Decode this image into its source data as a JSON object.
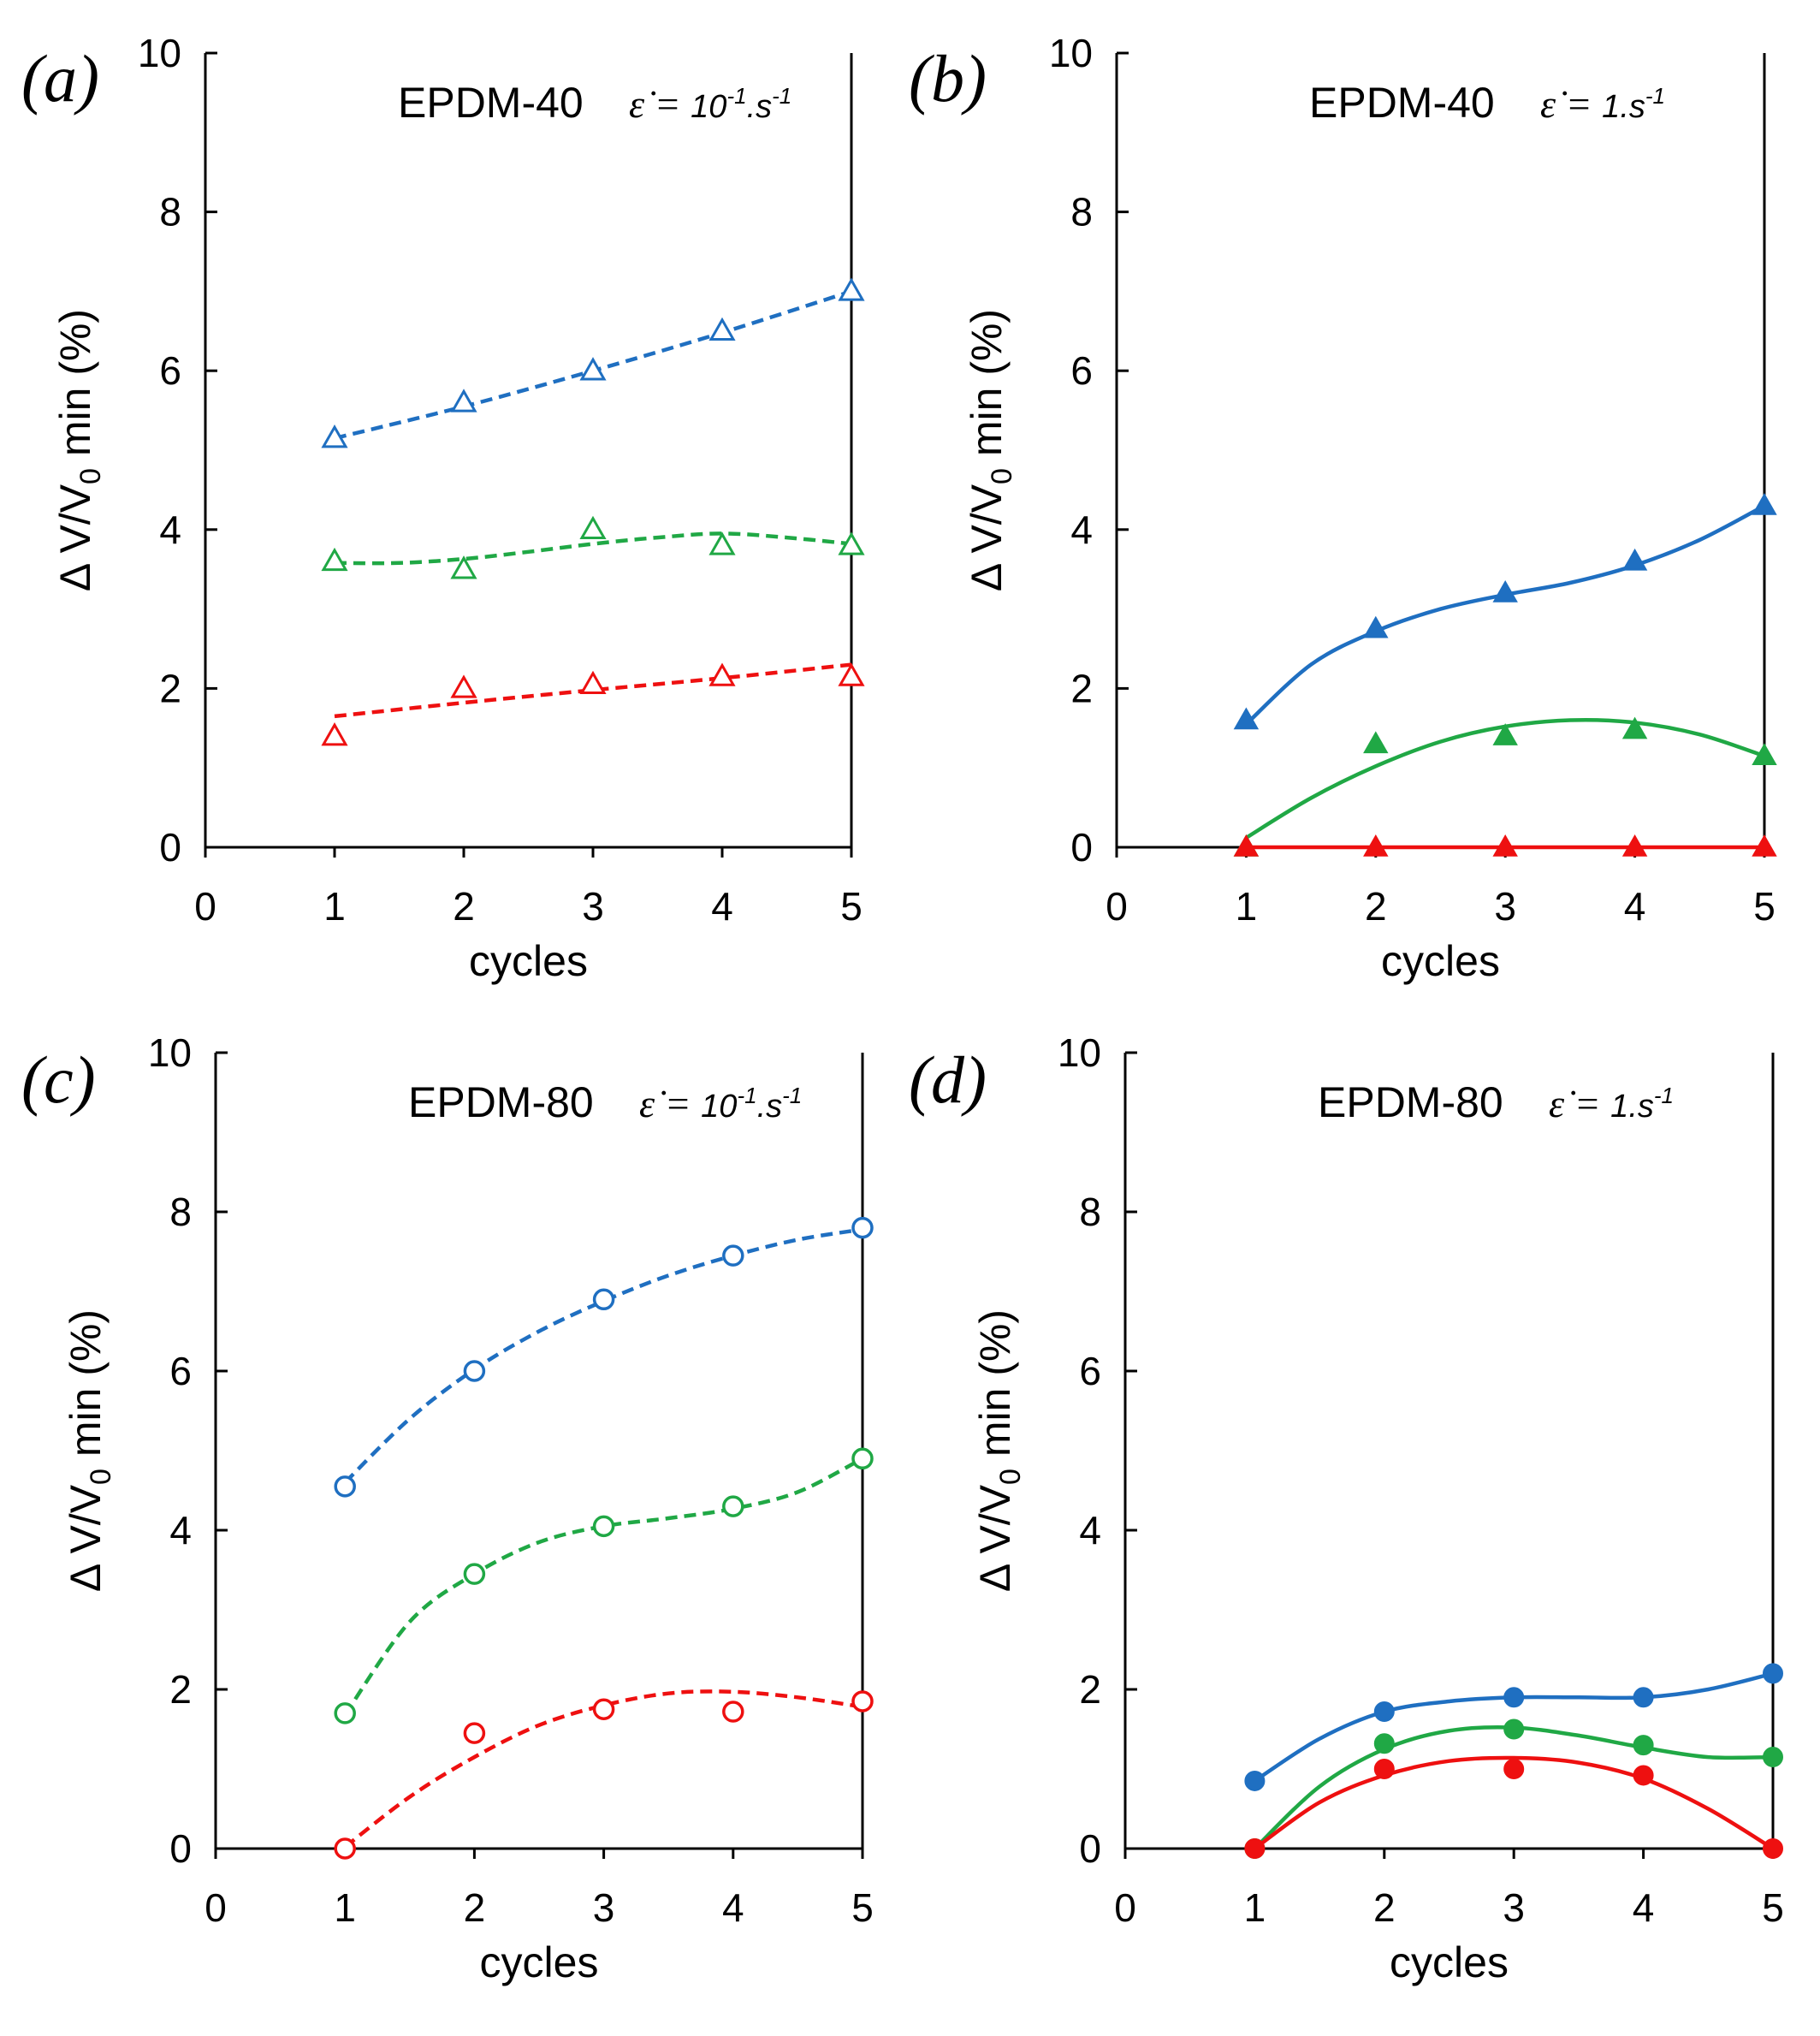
{
  "colors": {
    "blue": "#1f6fc1",
    "green": "#20a845",
    "red": "#ee1010"
  },
  "axes_text": {
    "xlabel": "cycles",
    "ylabel_main": "Δ V/V",
    "ylabel_sub": "0",
    "ylabel_end": " min (%)"
  },
  "chart_data": [
    {
      "panel": "(a)",
      "type": "scatter",
      "title": "EPDM-40",
      "rate_symbol": "ε̇ =",
      "rate_base": "10",
      "rate_exp": "-1",
      "rate_unit": ".s",
      "rate_unit_exp": "-1",
      "xlabel": "cycles",
      "ylabel": "Δ V/V0 min (%)",
      "xlim": [
        0,
        5
      ],
      "ylim": [
        0,
        10
      ],
      "xticks": [
        0,
        1,
        2,
        3,
        4,
        5
      ],
      "yticks": [
        0,
        2,
        4,
        6,
        8,
        10
      ],
      "marker": "triangle",
      "filled": false,
      "line_style": "dashed",
      "series": [
        {
          "name": "blue",
          "color": "#1f6fc1",
          "x": [
            1,
            2,
            3,
            4,
            5
          ],
          "values": [
            5.15,
            5.6,
            6.0,
            6.5,
            7.0
          ],
          "fit": [
            [
              1,
              5.15
            ],
            [
              2,
              5.55
            ],
            [
              3,
              6.0
            ],
            [
              4,
              6.48
            ],
            [
              5,
              7.0
            ]
          ]
        },
        {
          "name": "green",
          "color": "#20a845",
          "x": [
            1,
            2,
            3,
            4,
            5
          ],
          "values": [
            3.6,
            3.5,
            4.0,
            3.8,
            3.8
          ],
          "fit": [
            [
              1,
              3.58
            ],
            [
              1.5,
              3.58
            ],
            [
              2,
              3.63
            ],
            [
              2.5,
              3.72
            ],
            [
              3,
              3.82
            ],
            [
              3.5,
              3.9
            ],
            [
              4,
              3.95
            ],
            [
              4.5,
              3.9
            ],
            [
              5,
              3.82
            ]
          ]
        },
        {
          "name": "red",
          "color": "#ee1010",
          "x": [
            1,
            2,
            3,
            4,
            5
          ],
          "values": [
            1.4,
            2.0,
            2.05,
            2.15,
            2.15
          ],
          "fit": [
            [
              1,
              1.65
            ],
            [
              2,
              1.82
            ],
            [
              3,
              1.98
            ],
            [
              4,
              2.13
            ],
            [
              5,
              2.3
            ]
          ]
        }
      ]
    },
    {
      "panel": "(b)",
      "type": "scatter",
      "title": "EPDM-40",
      "rate_symbol": "ε̇ =",
      "rate_base": "1",
      "rate_exp": "",
      "rate_unit": ".s",
      "rate_unit_exp": "-1",
      "xlabel": "cycles",
      "ylabel": "Δ V/V0 min (%)",
      "xlim": [
        0,
        5
      ],
      "ylim": [
        0,
        10
      ],
      "xticks": [
        0,
        1,
        2,
        3,
        4,
        5
      ],
      "yticks": [
        0,
        2,
        4,
        6,
        8,
        10
      ],
      "marker": "triangle",
      "filled": true,
      "line_style": "solid",
      "series": [
        {
          "name": "blue",
          "color": "#1f6fc1",
          "x": [
            1,
            2,
            3,
            4,
            5
          ],
          "values": [
            1.6,
            2.75,
            3.2,
            3.6,
            4.3
          ],
          "fit": [
            [
              1,
              1.55
            ],
            [
              1.5,
              2.3
            ],
            [
              2,
              2.72
            ],
            [
              2.5,
              3.0
            ],
            [
              3,
              3.18
            ],
            [
              3.5,
              3.33
            ],
            [
              4,
              3.55
            ],
            [
              4.5,
              3.87
            ],
            [
              5,
              4.3
            ]
          ]
        },
        {
          "name": "green",
          "color": "#20a845",
          "x": [
            1,
            2,
            3,
            4,
            5
          ],
          "values": [
            0,
            1.3,
            1.4,
            1.48,
            1.15
          ],
          "fit": [
            [
              1,
              0.12
            ],
            [
              1.5,
              0.62
            ],
            [
              2,
              1.02
            ],
            [
              2.5,
              1.33
            ],
            [
              3,
              1.52
            ],
            [
              3.5,
              1.6
            ],
            [
              4,
              1.57
            ],
            [
              4.5,
              1.42
            ],
            [
              5,
              1.15
            ]
          ]
        },
        {
          "name": "red",
          "color": "#ee1010",
          "x": [
            1,
            2,
            3,
            4,
            5
          ],
          "values": [
            0,
            0,
            0,
            0,
            0
          ],
          "fit": [
            [
              1,
              0
            ],
            [
              5,
              0
            ]
          ]
        }
      ]
    },
    {
      "panel": "(c)",
      "type": "scatter",
      "title": "EPDM-80",
      "rate_symbol": "ε̇ =",
      "rate_base": "10",
      "rate_exp": "-1",
      "rate_unit": ".s",
      "rate_unit_exp": "-1",
      "xlabel": "cycles",
      "ylabel": "Δ V/V0 min (%)",
      "xlim": [
        0,
        5
      ],
      "ylim": [
        0,
        10
      ],
      "xticks": [
        0,
        1,
        2,
        3,
        4,
        5
      ],
      "yticks": [
        0,
        2,
        4,
        6,
        8,
        10
      ],
      "marker": "circle",
      "filled": false,
      "line_style": "dashed",
      "series": [
        {
          "name": "blue",
          "color": "#1f6fc1",
          "x": [
            1,
            2,
            3,
            4,
            5
          ],
          "values": [
            4.55,
            6.0,
            6.9,
            7.45,
            7.8
          ],
          "fit": [
            [
              1,
              4.6
            ],
            [
              1.5,
              5.4
            ],
            [
              2,
              6.02
            ],
            [
              2.5,
              6.5
            ],
            [
              3,
              6.88
            ],
            [
              3.5,
              7.2
            ],
            [
              4,
              7.45
            ],
            [
              4.5,
              7.65
            ],
            [
              5,
              7.78
            ]
          ]
        },
        {
          "name": "green",
          "color": "#20a845",
          "x": [
            1,
            2,
            3,
            4,
            5
          ],
          "values": [
            1.7,
            3.45,
            4.05,
            4.3,
            4.9
          ],
          "fit": [
            [
              1,
              1.68
            ],
            [
              1.5,
              2.85
            ],
            [
              2,
              3.45
            ],
            [
              2.5,
              3.85
            ],
            [
              3,
              4.05
            ],
            [
              3.5,
              4.15
            ],
            [
              4,
              4.27
            ],
            [
              4.5,
              4.48
            ],
            [
              5,
              4.9
            ]
          ]
        },
        {
          "name": "red",
          "color": "#ee1010",
          "x": [
            1,
            2,
            3,
            4,
            5
          ],
          "values": [
            0,
            1.45,
            1.75,
            1.72,
            1.85
          ],
          "fit": [
            [
              1,
              0.02
            ],
            [
              1.5,
              0.65
            ],
            [
              2,
              1.15
            ],
            [
              2.5,
              1.55
            ],
            [
              3,
              1.8
            ],
            [
              3.5,
              1.95
            ],
            [
              4,
              1.97
            ],
            [
              4.5,
              1.9
            ],
            [
              5,
              1.78
            ]
          ]
        }
      ]
    },
    {
      "panel": "(d)",
      "type": "scatter",
      "title": "EPDM-80",
      "rate_symbol": "ε̇ =",
      "rate_base": "1",
      "rate_exp": "",
      "rate_unit": ".s",
      "rate_unit_exp": "-1",
      "xlabel": "cycles",
      "ylabel": "Δ V/V0 min (%)",
      "xlim": [
        0,
        5
      ],
      "ylim": [
        0,
        10
      ],
      "xticks": [
        0,
        1,
        2,
        3,
        4,
        5
      ],
      "yticks": [
        0,
        2,
        4,
        6,
        8,
        10
      ],
      "marker": "circle",
      "filled": true,
      "line_style": "solid",
      "series": [
        {
          "name": "blue",
          "color": "#1f6fc1",
          "x": [
            1,
            2,
            3,
            4,
            5
          ],
          "values": [
            0.85,
            1.72,
            1.9,
            1.9,
            2.2
          ],
          "fit": [
            [
              1,
              0.85
            ],
            [
              1.5,
              1.38
            ],
            [
              2,
              1.72
            ],
            [
              2.5,
              1.85
            ],
            [
              3,
              1.9
            ],
            [
              3.5,
              1.9
            ],
            [
              4,
              1.9
            ],
            [
              4.5,
              2.0
            ],
            [
              5,
              2.2
            ]
          ]
        },
        {
          "name": "green",
          "color": "#20a845",
          "x": [
            1,
            2,
            3,
            4,
            5
          ],
          "values": [
            0,
            1.32,
            1.5,
            1.3,
            1.15
          ],
          "fit": [
            [
              1,
              0
            ],
            [
              1.5,
              0.78
            ],
            [
              2,
              1.25
            ],
            [
              2.5,
              1.48
            ],
            [
              3,
              1.52
            ],
            [
              3.5,
              1.42
            ],
            [
              4,
              1.27
            ],
            [
              4.5,
              1.15
            ],
            [
              5,
              1.15
            ]
          ]
        },
        {
          "name": "red",
          "color": "#ee1010",
          "x": [
            1,
            2,
            3,
            4,
            5
          ],
          "values": [
            0,
            1.0,
            1.0,
            0.92,
            0
          ],
          "fit": [
            [
              1,
              0
            ],
            [
              1.5,
              0.58
            ],
            [
              2,
              0.92
            ],
            [
              2.5,
              1.1
            ],
            [
              3,
              1.14
            ],
            [
              3.5,
              1.08
            ],
            [
              4,
              0.88
            ],
            [
              4.5,
              0.5
            ],
            [
              5,
              0
            ]
          ]
        }
      ]
    }
  ]
}
